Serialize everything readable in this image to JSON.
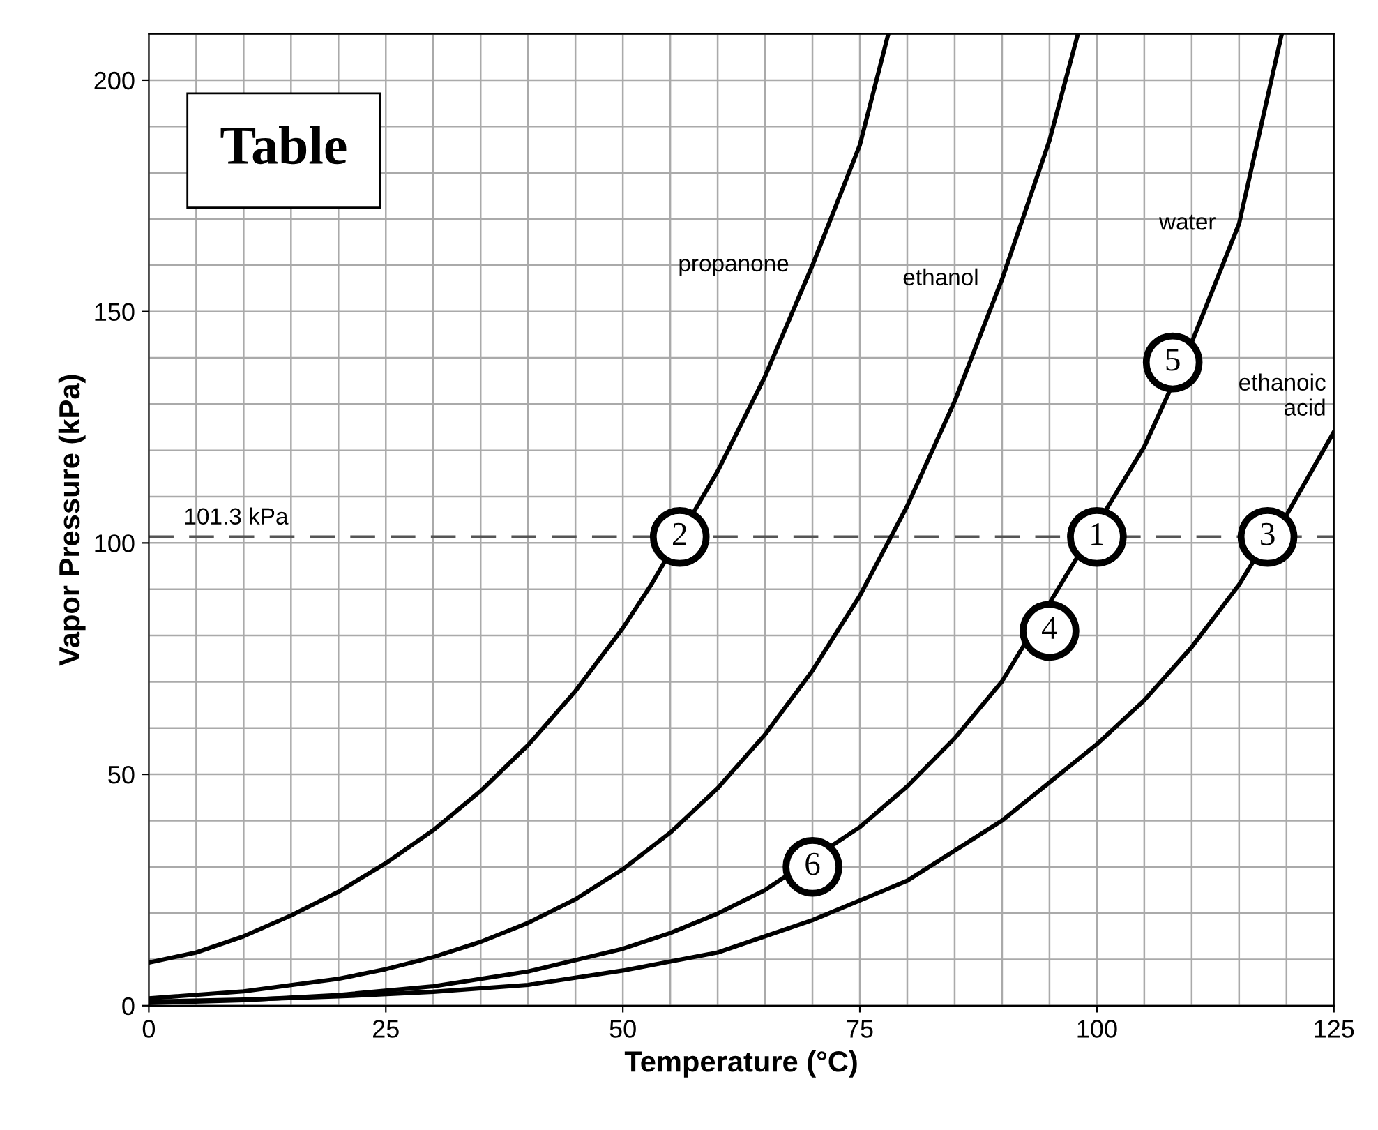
{
  "chart_data": {
    "type": "line",
    "xlabel": "Temperature (°C)",
    "ylabel": "Vapor Pressure (kPa)",
    "xlim": [
      0,
      125
    ],
    "ylim": [
      0,
      210
    ],
    "xticks": [
      0,
      25,
      50,
      75,
      100,
      125
    ],
    "yticks": [
      0,
      50,
      100,
      150,
      200
    ],
    "grid": true,
    "marker": "none",
    "line_style": "solid",
    "series": [
      {
        "name": "propanone",
        "color": "#000000",
        "x": [
          0,
          5,
          10,
          15,
          20,
          25,
          30,
          35,
          40,
          45,
          50,
          53,
          60,
          65,
          70,
          75,
          78
        ],
        "values": [
          9.3,
          11.5,
          15,
          19.5,
          24.6,
          30.8,
          37.9,
          46.4,
          56.3,
          68,
          81.6,
          91,
          115.5,
          136,
          160,
          186,
          210
        ]
      },
      {
        "name": "ethanol",
        "color": "#000000",
        "x": [
          0,
          10,
          20,
          25,
          30,
          35,
          40,
          45,
          50,
          55,
          60,
          65,
          70,
          75,
          80,
          85,
          90,
          95,
          98
        ],
        "values": [
          1.6,
          3.1,
          5.8,
          7.9,
          10.5,
          13.8,
          17.9,
          23,
          29.5,
          37.4,
          47,
          58.6,
          72.4,
          88.6,
          108,
          130.6,
          157,
          187,
          210
        ]
      },
      {
        "name": "water",
        "color": "#000000",
        "x": [
          0,
          10,
          20,
          30,
          40,
          50,
          55,
          60,
          65,
          75,
          80,
          85,
          90,
          105,
          110,
          115,
          119.5
        ],
        "values": [
          0.6,
          1.2,
          2.3,
          4.2,
          7.4,
          12.3,
          15.7,
          19.9,
          25,
          38.6,
          47.4,
          57.8,
          70.1,
          120.8,
          143.3,
          169,
          210
        ]
      },
      {
        "name": "ethanoic\nacid",
        "color": "#000000",
        "x": [
          0,
          10,
          20,
          30,
          40,
          50,
          60,
          70,
          80,
          90,
          100,
          105,
          110,
          115,
          118,
          120,
          125
        ],
        "values": [
          0.9,
          1.3,
          2,
          3,
          4.5,
          7.6,
          11.5,
          18.5,
          27,
          40,
          56.5,
          66,
          77.5,
          91,
          101,
          106,
          124
        ]
      }
    ],
    "ref_lines": [
      {
        "axis": "y",
        "value": 101.3,
        "label": "101.3 kPa",
        "color": "#555555",
        "line_style": "dashed"
      }
    ],
    "annotations": [
      "Table",
      {
        "text": "1",
        "x": 100,
        "y": 101.3
      },
      {
        "text": "2",
        "x": 56,
        "y": 101.3
      },
      {
        "text": "3",
        "x": 118,
        "y": 101.3
      },
      {
        "text": "4",
        "x": 95,
        "y": 81
      },
      {
        "text": "5",
        "x": 108,
        "y": 139
      },
      {
        "text": "6",
        "x": 70,
        "y": 30
      }
    ]
  }
}
